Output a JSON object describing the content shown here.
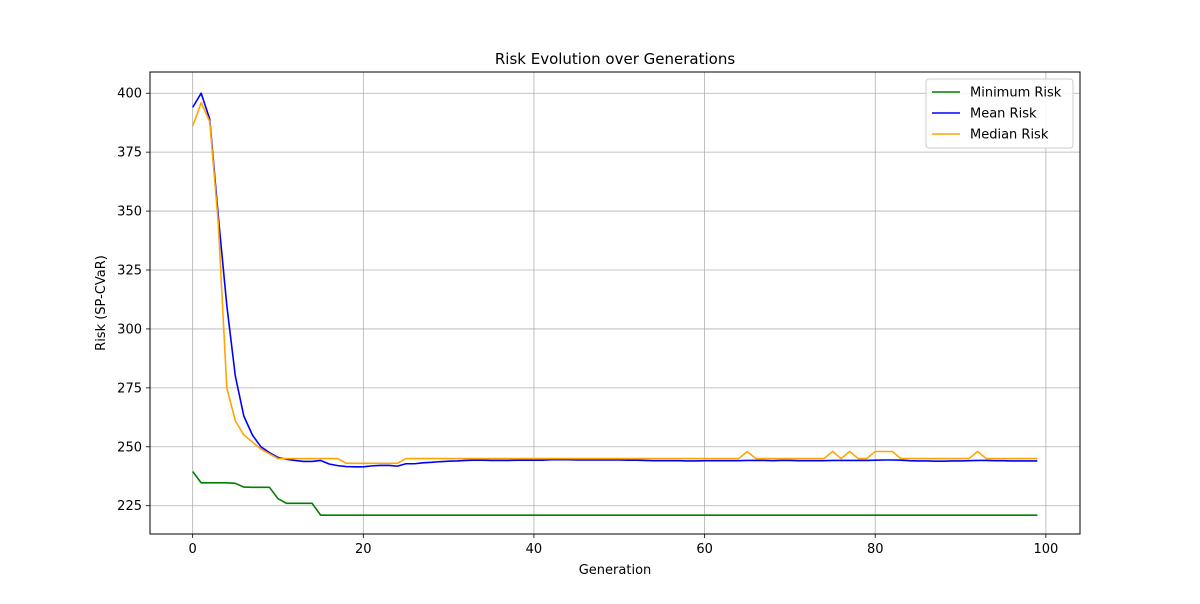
{
  "chart_data": {
    "type": "line",
    "title": "Risk Evolution over Generations",
    "xlabel": "Generation",
    "ylabel": "Risk (SP-CVaR)",
    "xlim": [
      -5,
      104
    ],
    "ylim": [
      213,
      409
    ],
    "xticks": [
      0,
      20,
      40,
      60,
      80,
      100
    ],
    "yticks": [
      225,
      250,
      275,
      300,
      325,
      350,
      375,
      400
    ],
    "grid": true,
    "legend_position": "top-right",
    "x": [
      0,
      1,
      2,
      3,
      4,
      5,
      6,
      7,
      8,
      9,
      10,
      11,
      12,
      13,
      14,
      15,
      16,
      17,
      18,
      19,
      20,
      21,
      22,
      23,
      24,
      25,
      26,
      27,
      28,
      29,
      30,
      31,
      32,
      33,
      34,
      35,
      36,
      37,
      38,
      39,
      40,
      41,
      42,
      43,
      44,
      45,
      46,
      47,
      48,
      49,
      50,
      51,
      52,
      53,
      54,
      55,
      56,
      57,
      58,
      59,
      60,
      61,
      62,
      63,
      64,
      65,
      66,
      67,
      68,
      69,
      70,
      71,
      72,
      73,
      74,
      75,
      76,
      77,
      78,
      79,
      80,
      81,
      82,
      83,
      84,
      85,
      86,
      87,
      88,
      89,
      90,
      91,
      92,
      93,
      94,
      95,
      96,
      97,
      98,
      99
    ],
    "series": [
      {
        "name": "Minimum Risk",
        "color": "#008000",
        "values": [
          239.5,
          234.7,
          234.7,
          234.7,
          234.7,
          234.5,
          232.9,
          232.8,
          232.8,
          232.8,
          228.0,
          226.0,
          226.0,
          226.0,
          226.0,
          221.0,
          221.0,
          221.0,
          221.0,
          221.0,
          221.0,
          221.0,
          221.0,
          221.0,
          221.0,
          221.0,
          221.0,
          221.0,
          221.0,
          221.0,
          221.0,
          221.0,
          221.0,
          221.0,
          221.0,
          221.0,
          221.0,
          221.0,
          221.0,
          221.0,
          221.0,
          221.0,
          221.0,
          221.0,
          221.0,
          221.0,
          221.0,
          221.0,
          221.0,
          221.0,
          221.0,
          221.0,
          221.0,
          221.0,
          221.0,
          221.0,
          221.0,
          221.0,
          221.0,
          221.0,
          221.0,
          221.0,
          221.0,
          221.0,
          221.0,
          221.0,
          221.0,
          221.0,
          221.0,
          221.0,
          221.0,
          221.0,
          221.0,
          221.0,
          221.0,
          221.0,
          221.0,
          221.0,
          221.0,
          221.0,
          221.0,
          221.0,
          221.0,
          221.0,
          221.0,
          221.0,
          221.0,
          221.0,
          221.0,
          221.0,
          221.0,
          221.0,
          221.0,
          221.0,
          221.0,
          221.0,
          221.0,
          221.0,
          221.0,
          221.0
        ]
      },
      {
        "name": "Mean Risk",
        "color": "#0000ff",
        "values": [
          394.0,
          400.0,
          389.0,
          348.0,
          310.0,
          280.0,
          263.0,
          255.0,
          250.0,
          247.5,
          245.5,
          244.7,
          244.2,
          243.8,
          243.8,
          244.2,
          242.7,
          242.0,
          241.6,
          241.5,
          241.5,
          241.9,
          242.1,
          242.1,
          241.8,
          242.8,
          242.8,
          243.2,
          243.4,
          243.7,
          243.9,
          244.0,
          244.2,
          244.3,
          244.3,
          244.2,
          244.2,
          244.2,
          244.3,
          244.3,
          244.3,
          244.3,
          244.5,
          244.5,
          244.5,
          244.4,
          244.4,
          244.4,
          244.4,
          244.4,
          244.4,
          244.3,
          244.3,
          244.2,
          244.1,
          244.1,
          244.1,
          244.1,
          244.0,
          244.0,
          244.1,
          244.1,
          244.1,
          244.1,
          244.1,
          244.2,
          244.2,
          244.2,
          244.1,
          244.2,
          244.2,
          244.1,
          244.1,
          244.1,
          244.1,
          244.2,
          244.2,
          244.2,
          244.2,
          244.2,
          244.3,
          244.4,
          244.4,
          244.3,
          244.1,
          244.0,
          244.0,
          243.9,
          243.9,
          244.0,
          244.0,
          244.1,
          244.2,
          244.2,
          244.1,
          244.1,
          244.0,
          244.0,
          244.0,
          244.0
        ]
      },
      {
        "name": "Median Risk",
        "color": "#ffa500",
        "values": [
          386.0,
          396.0,
          388.0,
          345.0,
          275.0,
          261.0,
          255.0,
          252.0,
          249.0,
          247.0,
          245.0,
          245.0,
          245.0,
          245.0,
          245.0,
          245.0,
          245.0,
          245.0,
          243.0,
          243.0,
          243.0,
          243.0,
          243.0,
          243.0,
          243.0,
          245.0,
          245.0,
          245.0,
          245.0,
          245.0,
          245.0,
          245.0,
          245.0,
          245.0,
          245.0,
          245.0,
          245.0,
          245.0,
          245.0,
          245.0,
          245.0,
          245.0,
          245.0,
          245.0,
          245.0,
          245.0,
          245.0,
          245.0,
          245.0,
          245.0,
          245.0,
          245.0,
          245.0,
          245.0,
          245.0,
          245.0,
          245.0,
          245.0,
          245.0,
          245.0,
          245.0,
          245.0,
          245.0,
          245.0,
          245.0,
          248.0,
          245.0,
          245.0,
          245.0,
          245.0,
          245.0,
          245.0,
          245.0,
          245.0,
          245.0,
          248.0,
          245.0,
          248.0,
          245.0,
          245.0,
          248.0,
          248.0,
          248.0,
          245.0,
          245.0,
          245.0,
          245.0,
          245.0,
          245.0,
          245.0,
          245.0,
          245.0,
          248.0,
          245.0,
          245.0,
          245.0,
          245.0,
          245.0,
          245.0,
          245.0
        ]
      }
    ]
  }
}
